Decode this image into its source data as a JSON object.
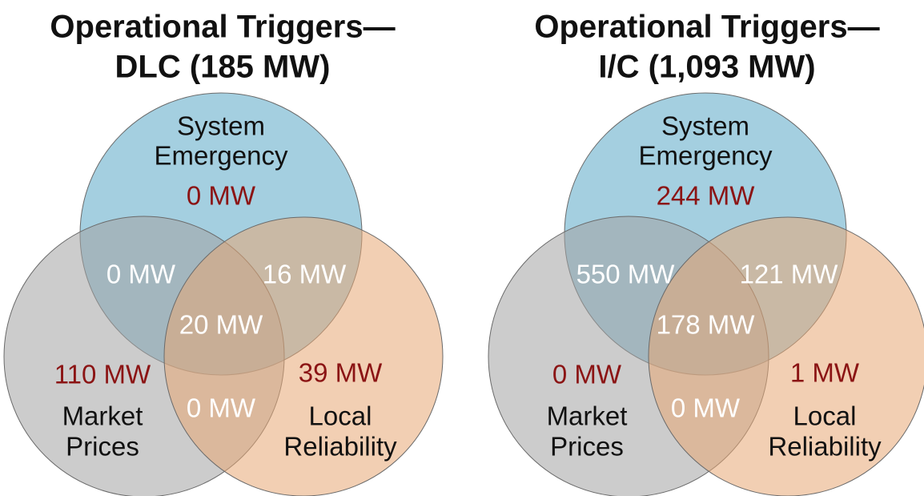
{
  "diagrams": [
    {
      "title": [
        "Operational Triggers—",
        "DLC (185 MW)"
      ],
      "sets": [
        [
          "System",
          "Emergency"
        ],
        [
          "Market",
          "Prices"
        ],
        [
          "Local",
          "Reliability"
        ]
      ],
      "regions": [
        "0 MW",
        "0 MW",
        "16 MW",
        "20 MW",
        "110 MW",
        "0 MW",
        "39 MW"
      ]
    },
    {
      "title": [
        "Operational Triggers—",
        "I/C (1,093 MW)"
      ],
      "sets": [
        [
          "System",
          "Emergency"
        ],
        [
          "Market",
          "Prices"
        ],
        [
          "Local",
          "Reliability"
        ]
      ],
      "regions": [
        "244 MW",
        "550 MW",
        "121 MW",
        "178 MW",
        "0 MW",
        "0 MW",
        "1 MW"
      ]
    }
  ]
}
